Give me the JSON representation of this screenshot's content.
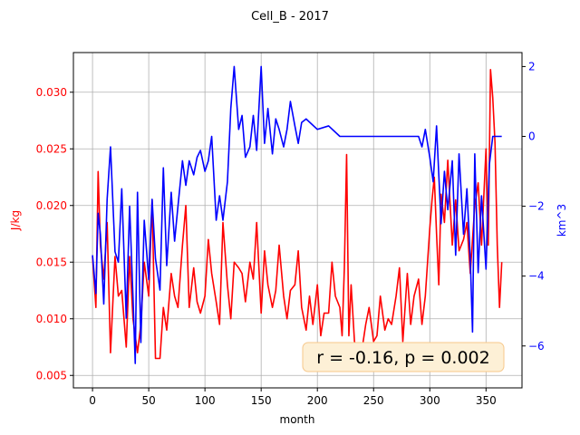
{
  "chart_data": {
    "type": "line",
    "title": "Cell_B - 2017",
    "xlabel": "month",
    "xlim": [
      -17,
      382
    ],
    "xticks": [
      0,
      50,
      100,
      150,
      200,
      250,
      300,
      350
    ],
    "grid": true,
    "left_axis": {
      "label": "J/kg",
      "color": "#ff0000",
      "ylim": [
        0.0039,
        0.0335
      ],
      "ticks": [
        0.005,
        0.01,
        0.015,
        0.02,
        0.025,
        0.03
      ],
      "tick_labels": [
        "0.005",
        "0.010",
        "0.015",
        "0.020",
        "0.025",
        "0.030"
      ]
    },
    "right_axis": {
      "label": "km^3",
      "color": "#0000ff",
      "ylim": [
        -7.2,
        2.4
      ],
      "ticks": [
        -6,
        -4,
        -2,
        0,
        2
      ],
      "tick_labels": [
        "−6",
        "−4",
        "−2",
        "0",
        "2"
      ]
    },
    "series": [
      {
        "name": "",
        "axis": "left",
        "color": "#ff0000",
        "x": [
          0,
          3,
          5,
          7,
          10,
          13,
          16,
          20,
          23,
          26,
          30,
          33,
          36,
          40,
          43,
          46,
          50,
          53,
          56,
          60,
          63,
          66,
          70,
          73,
          76,
          80,
          83,
          86,
          90,
          93,
          96,
          100,
          103,
          106,
          110,
          113,
          116,
          120,
          123,
          126,
          130,
          133,
          136,
          140,
          143,
          146,
          150,
          153,
          156,
          160,
          163,
          166,
          170,
          173,
          176,
          180,
          183,
          186,
          190,
          193,
          196,
          200,
          203,
          206,
          210,
          213,
          216,
          220,
          222,
          224,
          226,
          228,
          230,
          233,
          236,
          240,
          243,
          246,
          250,
          253,
          256,
          260,
          263,
          266,
          270,
          273,
          276,
          280,
          283,
          286,
          290,
          293,
          296,
          300,
          302,
          304,
          306,
          308,
          310,
          313,
          316,
          320,
          323,
          326,
          330,
          333,
          336,
          340,
          343,
          346,
          350,
          352,
          354,
          356,
          358,
          360,
          362,
          364
        ],
        "y": [
          0.0155,
          0.011,
          0.023,
          0.0165,
          0.0135,
          0.0185,
          0.007,
          0.0155,
          0.012,
          0.0125,
          0.0075,
          0.0155,
          0.01,
          0.007,
          0.0095,
          0.015,
          0.012,
          0.0205,
          0.0065,
          0.0065,
          0.011,
          0.009,
          0.014,
          0.012,
          0.011,
          0.0165,
          0.02,
          0.011,
          0.0145,
          0.0115,
          0.0105,
          0.012,
          0.017,
          0.014,
          0.0115,
          0.0095,
          0.0185,
          0.013,
          0.01,
          0.015,
          0.0145,
          0.014,
          0.0115,
          0.015,
          0.0135,
          0.0185,
          0.0105,
          0.016,
          0.013,
          0.011,
          0.0125,
          0.0165,
          0.012,
          0.01,
          0.0125,
          0.013,
          0.016,
          0.011,
          0.009,
          0.012,
          0.0095,
          0.013,
          0.0085,
          0.0105,
          0.0105,
          0.015,
          0.012,
          0.011,
          0.0085,
          0.0145,
          0.0245,
          0.0085,
          0.013,
          0.008,
          0.007,
          0.0075,
          0.0095,
          0.011,
          0.008,
          0.0085,
          0.012,
          0.009,
          0.01,
          0.0095,
          0.012,
          0.0145,
          0.008,
          0.014,
          0.0095,
          0.012,
          0.0135,
          0.0095,
          0.012,
          0.018,
          0.0205,
          0.0225,
          0.0175,
          0.013,
          0.021,
          0.0185,
          0.024,
          0.0165,
          0.0205,
          0.016,
          0.017,
          0.0185,
          0.014,
          0.02,
          0.022,
          0.0165,
          0.025,
          0.0165,
          0.032,
          0.0295,
          0.0255,
          0.0165,
          0.011,
          0.015
        ]
      },
      {
        "name": "",
        "axis": "right",
        "color": "#0000ff",
        "x": [
          0,
          3,
          5,
          7,
          10,
          13,
          16,
          20,
          23,
          26,
          30,
          33,
          36,
          38,
          40,
          43,
          46,
          50,
          53,
          56,
          60,
          63,
          66,
          70,
          73,
          76,
          80,
          83,
          86,
          90,
          93,
          96,
          100,
          103,
          106,
          110,
          113,
          116,
          120,
          123,
          126,
          130,
          133,
          136,
          140,
          143,
          146,
          150,
          153,
          156,
          160,
          163,
          166,
          170,
          173,
          176,
          180,
          183,
          186,
          190,
          200,
          210,
          220,
          225,
          230,
          240,
          260,
          280,
          290,
          293,
          296,
          300,
          303,
          306,
          310,
          313,
          316,
          320,
          323,
          326,
          330,
          333,
          336,
          338,
          340,
          343,
          346,
          350,
          353,
          356,
          360,
          364
        ],
        "y": [
          -3.4,
          -4.5,
          -2.2,
          -2.8,
          -4.8,
          -1.8,
          -0.3,
          -3.3,
          -3.6,
          -1.5,
          -5.2,
          -2.0,
          -4.6,
          -6.5,
          -1.6,
          -5.9,
          -2.4,
          -4.1,
          -1.8,
          -3.5,
          -4.4,
          -0.9,
          -3.7,
          -1.6,
          -3.0,
          -2.0,
          -0.7,
          -1.4,
          -0.7,
          -1.1,
          -0.6,
          -0.4,
          -1.0,
          -0.7,
          0.0,
          -2.4,
          -1.7,
          -2.4,
          -1.3,
          0.8,
          2.0,
          0.2,
          0.6,
          -0.6,
          -0.3,
          0.6,
          -0.4,
          2.0,
          -0.2,
          0.8,
          -0.5,
          0.5,
          0.2,
          -0.3,
          0.2,
          1.0,
          0.3,
          -0.2,
          0.4,
          0.5,
          0.2,
          0.3,
          0.0,
          0.0,
          0.0,
          0.0,
          0.0,
          0.0,
          0.0,
          -0.3,
          0.2,
          -0.6,
          -1.3,
          0.3,
          -2.5,
          -1.0,
          -2.1,
          -0.7,
          -3.4,
          -0.5,
          -2.8,
          -1.5,
          -3.5,
          -5.6,
          -0.5,
          -3.9,
          -1.7,
          -3.8,
          -0.8,
          0.0,
          0.0,
          0.0
        ]
      }
    ],
    "annotation": {
      "text": "r = -0.16, p = 0.002",
      "position": "bottom-right"
    }
  }
}
